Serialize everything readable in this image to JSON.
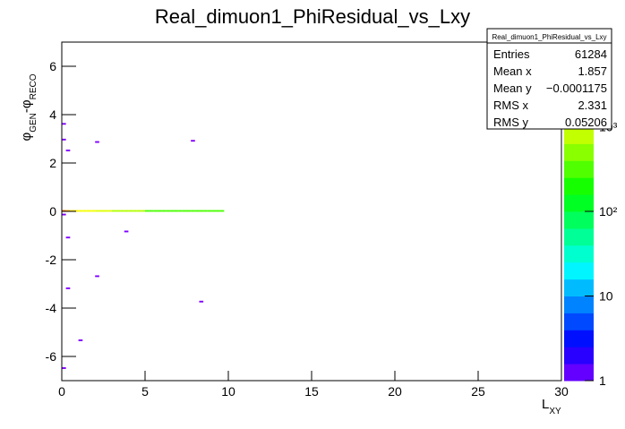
{
  "chart_data": {
    "type": "heatmap2d",
    "title": "Real_dimuon1_PhiResidual_vs_Lxy",
    "xlabel": [
      {
        "text": "L"
      },
      {
        "text": "XY",
        "sub": true
      }
    ],
    "ylabel": [
      {
        "text": "φ"
      },
      {
        "text": "GEN",
        "sub": true
      },
      {
        "text": "-φ"
      },
      {
        "text": "RECO",
        "sub": true
      }
    ],
    "xlim": [
      0,
      30
    ],
    "ylim": [
      -7,
      7
    ],
    "xticks": [
      0,
      5,
      10,
      15,
      20,
      25,
      30
    ],
    "yticks": [
      -6,
      -4,
      -2,
      0,
      2,
      4,
      6
    ],
    "zlim": [
      1,
      10000
    ],
    "zlog": true,
    "zticks": [
      1,
      10,
      {
        "value": 100,
        "label": "10²"
      },
      {
        "value": 1000,
        "label": "10³"
      }
    ],
    "xbin": 0.25,
    "ybin": 0.07,
    "cells": [
      [
        0,
        0,
        4000
      ],
      [
        0.25,
        0,
        2500
      ],
      [
        0.5,
        0,
        1500
      ],
      [
        0.75,
        0,
        1500
      ],
      [
        1,
        0,
        1200
      ],
      [
        1.25,
        0,
        1200
      ],
      [
        1.5,
        0,
        1200
      ],
      [
        1.75,
        0,
        1200
      ],
      [
        2,
        0,
        1000
      ],
      [
        2.25,
        0,
        1000
      ],
      [
        2.5,
        0,
        1000
      ],
      [
        2.75,
        0,
        1000
      ],
      [
        3,
        0,
        700
      ],
      [
        3.25,
        0,
        700
      ],
      [
        3.5,
        0,
        700
      ],
      [
        3.75,
        0,
        700
      ],
      [
        4,
        0,
        700
      ],
      [
        4.25,
        0,
        700
      ],
      [
        4.5,
        0,
        700
      ],
      [
        4.75,
        0,
        700
      ],
      [
        5,
        0,
        300
      ],
      [
        5.25,
        0,
        300
      ],
      [
        5.5,
        0,
        300
      ],
      [
        5.75,
        0,
        300
      ],
      [
        6,
        0,
        300
      ],
      [
        6.25,
        0,
        300
      ],
      [
        6.5,
        0,
        300
      ],
      [
        6.75,
        0,
        300
      ],
      [
        7,
        0,
        300
      ],
      [
        7.25,
        0,
        300
      ],
      [
        7.5,
        0,
        300
      ],
      [
        7.75,
        0,
        300
      ],
      [
        8,
        0,
        300
      ],
      [
        8.25,
        0,
        300
      ],
      [
        8.5,
        0,
        300
      ],
      [
        8.75,
        0,
        300
      ],
      [
        9,
        0,
        300
      ],
      [
        9.25,
        0,
        300
      ],
      [
        9.5,
        0,
        300
      ],
      [
        0,
        3.6,
        1
      ],
      [
        0,
        2.95,
        1
      ],
      [
        0.25,
        2.5,
        1
      ],
      [
        2,
        2.85,
        1
      ],
      [
        7.75,
        2.9,
        1
      ],
      [
        3.75,
        -0.85,
        1
      ],
      [
        2,
        -2.7,
        1
      ],
      [
        0.25,
        -3.2,
        1
      ],
      [
        8.25,
        -3.75,
        1
      ],
      [
        1,
        -5.35,
        1
      ],
      [
        0,
        -6.5,
        1
      ],
      [
        0,
        -0.15,
        1
      ],
      [
        0.25,
        -1.1,
        1
      ]
    ],
    "stats_title": "Real_dimuon1_PhiResidual_vs_Lxy",
    "stats": [
      {
        "label": "Entries",
        "value": "61284"
      },
      {
        "label": "Mean x",
        "value": "1.857"
      },
      {
        "label": "Mean y",
        "value": "−0.0001175"
      },
      {
        "label": "RMS x",
        "value": "2.331"
      },
      {
        "label": "RMS y",
        "value": "0.05206"
      }
    ]
  }
}
